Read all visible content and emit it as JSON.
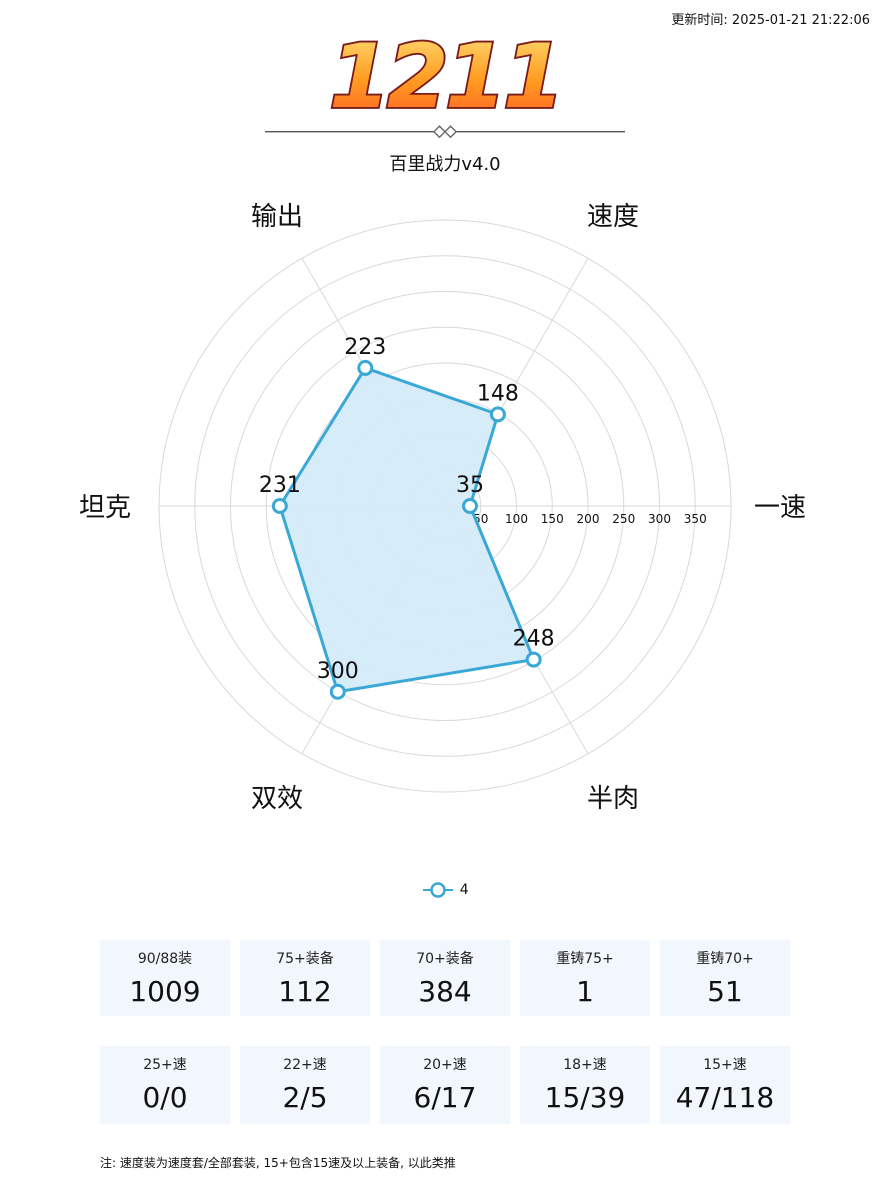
{
  "header": {
    "update_time": "更新时间: 2025-01-21 21:22:06",
    "score": "1211",
    "version": "百里战力v4.0"
  },
  "chart_data": {
    "type": "radar",
    "axes": [
      "一速",
      "速度",
      "输出",
      "坦克",
      "双效",
      "半肉"
    ],
    "series": [
      {
        "name": "4",
        "values": [
          35,
          148,
          223,
          231,
          300,
          248
        ]
      }
    ],
    "rlim": [
      0,
      400
    ],
    "ticks": [
      50,
      100,
      150,
      200,
      250,
      300,
      350
    ],
    "grid": true,
    "legend_position": "bottom",
    "colors": {
      "line": "#3aa8d6",
      "fill": "#d4ebf8",
      "grid": "#d9d9d9"
    }
  },
  "stats_row1": [
    {
      "label": "90/88装",
      "value": "1009"
    },
    {
      "label": "75+装备",
      "value": "112"
    },
    {
      "label": "70+装备",
      "value": "384"
    },
    {
      "label": "重铸75+",
      "value": "1"
    },
    {
      "label": "重铸70+",
      "value": "51"
    }
  ],
  "stats_row2": [
    {
      "label": "25+速",
      "value": "0/0"
    },
    {
      "label": "22+速",
      "value": "2/5"
    },
    {
      "label": "20+速",
      "value": "6/17"
    },
    {
      "label": "18+速",
      "value": "15/39"
    },
    {
      "label": "15+速",
      "value": "47/118"
    }
  ],
  "footer": {
    "note": "注: 速度装为速度套/全部套装, 15+包含15速及以上装备, 以此类推"
  },
  "colors": {
    "card_bg": "#f1f7fc",
    "accent": "#3aa8d6",
    "score_fill": "#f5a623",
    "score_stroke": "#8b1a1a"
  }
}
